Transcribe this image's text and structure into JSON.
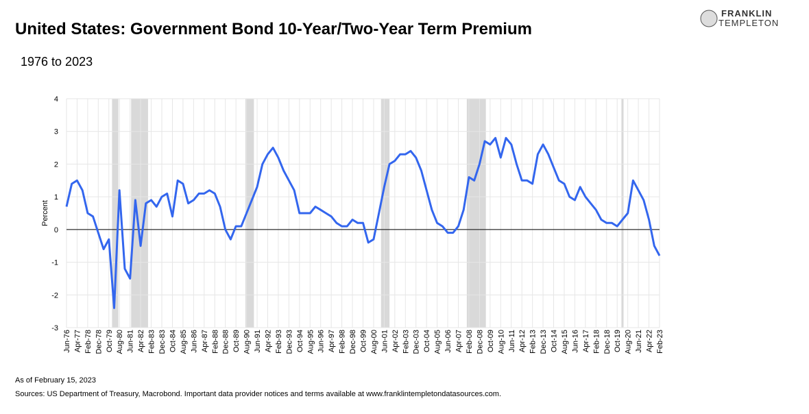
{
  "chart_data": {
    "type": "line",
    "title": "United States: Government Bond 10-Year/Two-Year Term Premium",
    "subtitle": "1976 to 2023",
    "y_label": "Percent",
    "brand": [
      "FRANKLIN",
      "TEMPLETON"
    ],
    "notes": [
      "As of February 15, 2023",
      "Sources: US Department of Treasury, Macrobond.  Important data provider notices and terms available at www.franklintempletondatasources.com."
    ],
    "x": [
      "Jun-76",
      "Nov-76",
      "Apr-77",
      "Sep-77",
      "Feb-78",
      "Jul-78",
      "Dec-78",
      "May-79",
      "Oct-79",
      "Mar-80",
      "Aug-80",
      "Jan-81",
      "Jun-81",
      "Nov-81",
      "Apr-82",
      "Sep-82",
      "Feb-83",
      "Jul-83",
      "Dec-83",
      "May-84",
      "Oct-84",
      "Mar-85",
      "Aug-85",
      "Jan-86",
      "Jun-86",
      "Nov-86",
      "Apr-87",
      "Sep-87",
      "Feb-88",
      "Jul-88",
      "Dec-88",
      "May-89",
      "Oct-89",
      "Mar-90",
      "Aug-90",
      "Jan-91",
      "Jun-91",
      "Nov-91",
      "Apr-92",
      "Sep-92",
      "Feb-93",
      "Jul-93",
      "Dec-93",
      "May-94",
      "Oct-94",
      "Mar-95",
      "Aug-95",
      "Jan-96",
      "Jun-96",
      "Nov-96",
      "Apr-97",
      "Sep-97",
      "Feb-98",
      "Jul-98",
      "Dec-98",
      "May-99",
      "Oct-99",
      "Mar-00",
      "Aug-00",
      "Jan-01",
      "Jun-01",
      "Nov-01",
      "Apr-02",
      "Sep-02",
      "Feb-03",
      "Jul-03",
      "Dec-03",
      "May-04",
      "Oct-04",
      "Mar-05",
      "Aug-05",
      "Jan-06",
      "Jun-06",
      "Nov-06",
      "Apr-07",
      "Sep-07",
      "Feb-08",
      "Jul-08",
      "Dec-08",
      "May-09",
      "Oct-09",
      "Mar-10",
      "Aug-10",
      "Jan-11",
      "Jun-11",
      "Nov-11",
      "Apr-12",
      "Sep-12",
      "Feb-13",
      "Jul-13",
      "Dec-13",
      "May-14",
      "Oct-14",
      "Mar-15",
      "Aug-15",
      "Jan-16",
      "Jun-16",
      "Nov-16",
      "Apr-17",
      "Sep-17",
      "Feb-18",
      "Jul-18",
      "Dec-18",
      "May-19",
      "Oct-19",
      "Mar-20",
      "Aug-20",
      "Jan-21",
      "Jun-21",
      "Nov-21",
      "Apr-22",
      "Sep-22",
      "Feb-23"
    ],
    "series": [
      {
        "name": "Term Premium",
        "color": "#3366ee",
        "values": [
          0.7,
          1.4,
          1.5,
          1.2,
          0.5,
          0.4,
          -0.1,
          -0.6,
          -0.3,
          -2.4,
          1.2,
          -1.2,
          -1.5,
          0.9,
          -0.5,
          0.8,
          0.9,
          0.7,
          1.0,
          1.1,
          0.4,
          1.5,
          1.4,
          0.8,
          0.9,
          1.1,
          1.1,
          1.2,
          1.1,
          0.7,
          0.0,
          -0.3,
          0.1,
          0.1,
          0.5,
          0.9,
          1.3,
          2.0,
          2.3,
          2.5,
          2.2,
          1.8,
          1.5,
          1.2,
          0.5,
          0.5,
          0.5,
          0.7,
          0.6,
          0.5,
          0.4,
          0.2,
          0.1,
          0.1,
          0.3,
          0.2,
          0.2,
          -0.4,
          -0.3,
          0.5,
          1.3,
          2.0,
          2.1,
          2.3,
          2.3,
          2.4,
          2.2,
          1.8,
          1.2,
          0.6,
          0.2,
          0.1,
          -0.1,
          -0.1,
          0.1,
          0.6,
          1.6,
          1.5,
          2.0,
          2.7,
          2.6,
          2.8,
          2.2,
          2.8,
          2.6,
          2.0,
          1.5,
          1.5,
          1.4,
          2.3,
          2.6,
          2.3,
          1.9,
          1.5,
          1.4,
          1.0,
          0.9,
          1.3,
          1.0,
          0.8,
          0.6,
          0.3,
          0.2,
          0.2,
          0.1,
          0.3,
          0.5,
          1.5,
          1.2,
          0.9,
          0.3,
          -0.5,
          -0.8
        ]
      }
    ],
    "recessions": [
      [
        "Jan-80",
        "Jul-80"
      ],
      [
        "Jul-81",
        "Nov-82"
      ],
      [
        "Jul-90",
        "Mar-91"
      ],
      [
        "Mar-01",
        "Nov-01"
      ],
      [
        "Dec-07",
        "Jun-09"
      ],
      [
        "Feb-20",
        "Apr-20"
      ]
    ],
    "xlim": [
      "Jun-76",
      "Feb-23"
    ],
    "xticks": [
      "Jun-76",
      "Apr-77",
      "Feb-78",
      "Dec-78",
      "Oct-79",
      "Aug-80",
      "Jun-81",
      "Apr-82",
      "Feb-83",
      "Dec-83",
      "Oct-84",
      "Aug-85",
      "Jun-86",
      "Apr-87",
      "Feb-88",
      "Dec-88",
      "Oct-89",
      "Aug-90",
      "Jun-91",
      "Apr-92",
      "Feb-93",
      "Dec-93",
      "Oct-94",
      "Aug-95",
      "Jun-96",
      "Apr-97",
      "Feb-98",
      "Dec-98",
      "Oct-99",
      "Aug-00",
      "Jun-01",
      "Apr-02",
      "Feb-03",
      "Dec-03",
      "Oct-04",
      "Aug-05",
      "Jun-06",
      "Apr-07",
      "Feb-08",
      "Dec-08",
      "Oct-09",
      "Aug-10",
      "Jun-11",
      "Apr-12",
      "Feb-13",
      "Dec-13",
      "Oct-14",
      "Aug-15",
      "Jun-16",
      "Apr-17",
      "Feb-18",
      "Dec-18",
      "Oct-19",
      "Aug-20",
      "Jun-21",
      "Apr-22",
      "Feb-23"
    ],
    "ylim": [
      -3,
      4
    ],
    "yticks": [
      -3,
      -2,
      -1,
      0,
      1,
      2,
      3,
      4
    ],
    "grid": true
  }
}
